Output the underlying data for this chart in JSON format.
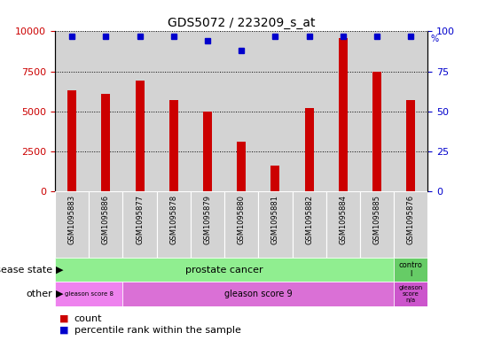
{
  "title": "GDS5072 / 223209_s_at",
  "samples": [
    "GSM1095883",
    "GSM1095886",
    "GSM1095877",
    "GSM1095878",
    "GSM1095879",
    "GSM1095880",
    "GSM1095881",
    "GSM1095882",
    "GSM1095884",
    "GSM1095885",
    "GSM1095876"
  ],
  "counts": [
    6300,
    6100,
    6900,
    5700,
    5000,
    3100,
    1600,
    5200,
    9600,
    7500,
    5700
  ],
  "percentile_ranks": [
    97,
    97,
    97,
    97,
    94,
    88,
    97,
    97,
    97,
    97,
    97
  ],
  "bar_color": "#cc0000",
  "dot_color": "#0000cc",
  "ylim_left": [
    0,
    10000
  ],
  "ylim_right": [
    0,
    100
  ],
  "yticks_left": [
    0,
    2500,
    5000,
    7500,
    10000
  ],
  "yticks_right": [
    0,
    25,
    50,
    75,
    100
  ],
  "disease_state_groups": [
    {
      "label": "prostate cancer",
      "start": 0,
      "end": 9,
      "color": "#90ee90"
    },
    {
      "label": "contro\nl",
      "start": 10,
      "end": 10,
      "color": "#66cc66"
    }
  ],
  "other_groups": [
    {
      "label": "gleason score 8",
      "start": 0,
      "end": 1,
      "color": "#ee82ee"
    },
    {
      "label": "gleason score 9",
      "start": 2,
      "end": 9,
      "color": "#da70d6"
    },
    {
      "label": "gleason\nscore\nn/a",
      "start": 10,
      "end": 10,
      "color": "#cc55cc"
    }
  ],
  "legend_count_color": "#cc0000",
  "legend_dot_color": "#0000cc",
  "col_bg_color": "#d3d3d3",
  "plot_bg_color": "#ffffff"
}
